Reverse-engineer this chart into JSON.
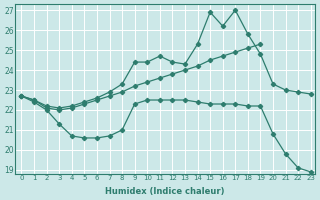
{
  "xlabel": "Humidex (Indice chaleur)",
  "bg_color": "#cce8e8",
  "grid_color": "#ffffff",
  "line_color": "#2e7d6e",
  "xlim": [
    -0.5,
    23.3
  ],
  "ylim": [
    18.8,
    27.3
  ],
  "xticks": [
    0,
    1,
    2,
    3,
    4,
    5,
    6,
    7,
    8,
    9,
    10,
    11,
    12,
    13,
    14,
    15,
    16,
    17,
    18,
    19,
    20,
    21,
    22,
    23
  ],
  "yticks": [
    19,
    20,
    21,
    22,
    23,
    24,
    25,
    26,
    27
  ],
  "line_top_x": [
    0,
    1,
    2,
    3,
    4,
    5,
    6,
    7,
    8,
    9,
    10,
    11,
    12,
    13,
    14,
    15,
    16,
    17,
    18,
    19,
    20,
    21,
    22,
    23
  ],
  "line_top_y": [
    22.7,
    22.5,
    22.2,
    22.1,
    22.2,
    22.4,
    22.6,
    22.9,
    23.3,
    24.4,
    24.4,
    24.7,
    24.4,
    24.3,
    25.3,
    26.9,
    26.2,
    27.0,
    25.8,
    24.8,
    23.3,
    23.0,
    22.9,
    22.8
  ],
  "line_mid_x": [
    0,
    1,
    2,
    3,
    4,
    5,
    6,
    7,
    8,
    9,
    10,
    11,
    12,
    13,
    14,
    15,
    16,
    17,
    18,
    19
  ],
  "line_mid_y": [
    22.7,
    22.5,
    22.1,
    22.0,
    22.1,
    22.3,
    22.5,
    22.7,
    22.9,
    23.2,
    23.4,
    23.6,
    23.8,
    24.0,
    24.2,
    24.5,
    24.7,
    24.9,
    25.1,
    25.3
  ],
  "line_bot_x": [
    0,
    1,
    2,
    3,
    4,
    5,
    6,
    7,
    8,
    9,
    10,
    11,
    12,
    13,
    14,
    15,
    16,
    17,
    18,
    19,
    20,
    21,
    22,
    23
  ],
  "line_bot_y": [
    22.7,
    22.4,
    22.0,
    21.3,
    20.7,
    20.6,
    20.6,
    20.7,
    21.0,
    22.3,
    22.5,
    22.5,
    22.5,
    22.5,
    22.4,
    22.3,
    22.3,
    22.3,
    22.2,
    22.2,
    20.8,
    19.8,
    19.1,
    18.9
  ]
}
